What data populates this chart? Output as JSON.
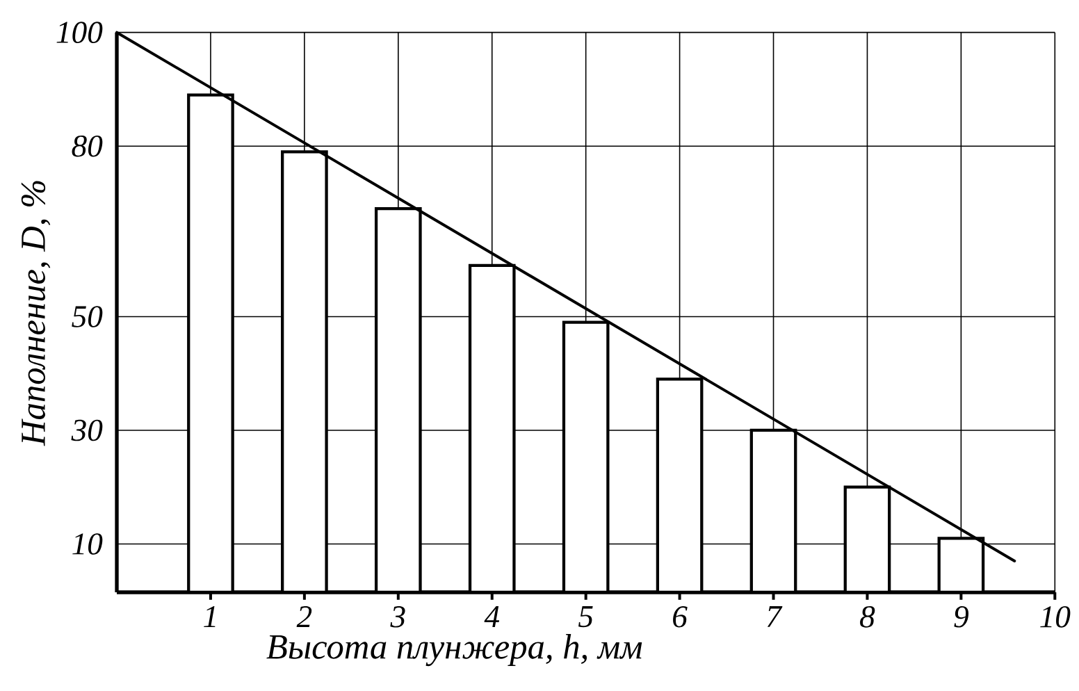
{
  "chart_data": {
    "type": "bar",
    "xlabel": "Высота плунжера, h, мм",
    "ylabel": "Наполнение, D, %",
    "x": [
      1,
      2,
      3,
      4,
      5,
      6,
      7,
      8,
      9
    ],
    "series": [
      {
        "color": "#000000",
        "values": [
          89,
          79,
          69,
          59,
          49,
          39,
          30,
          20,
          11
        ]
      },
      {
        "type": "line",
        "color": "#000000",
        "x": [
          0,
          9.57
        ],
        "values": [
          100,
          7
        ],
        "line_style": "solid",
        "marker": "none"
      }
    ],
    "xlim": [
      0,
      10
    ],
    "xticks": [
      1,
      2,
      3,
      4,
      5,
      6,
      7,
      8,
      9,
      10
    ],
    "ylim": [
      1.5,
      100
    ],
    "yticks": [
      10,
      30,
      50,
      80,
      100
    ],
    "grid": true
  }
}
